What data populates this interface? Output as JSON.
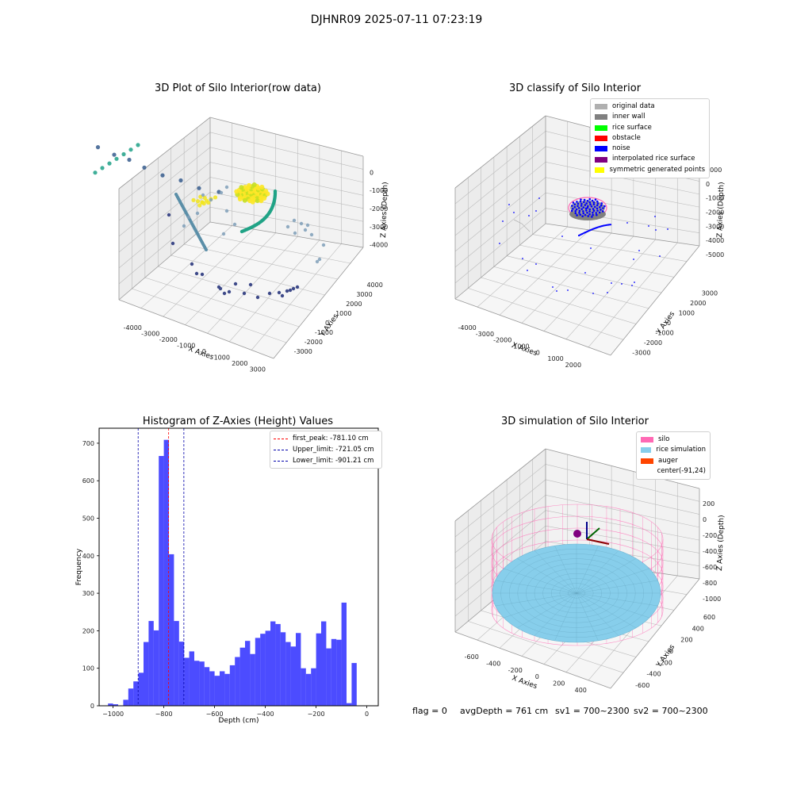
{
  "suptitle": "DJHNR09 2025-07-11 07:23:19",
  "footer": {
    "flag": "flag = 0",
    "avg_depth": "avgDepth = 761 cm",
    "sv1": "sv1 = 700~2300",
    "sv2": "sv2 = 700~2300"
  },
  "chart_data": [
    {
      "type": "scatter",
      "projection": "3d",
      "title": "3D Plot of Silo Interior(row data)",
      "xlabel": "X Axies",
      "ylabel": "Y Axies",
      "zlabel": "Z Axies (Depth)",
      "x_ticks": [
        "-4000",
        "-3000",
        "-2000",
        "-1000",
        "0",
        "1000",
        "2000",
        "3000"
      ],
      "y_ticks": [
        "-3000",
        "-2000",
        "-1000",
        "0",
        "1000",
        "2000",
        "3000",
        "4000"
      ],
      "z_ticks": [
        "0",
        "-1000",
        "-2000",
        "-3000",
        "-4000"
      ],
      "grid": true,
      "colormap": "viridis",
      "series": [
        {
          "label_color": "#f2e51d",
          "x": [
            -200,
            -100,
            0,
            100,
            200,
            300,
            -150,
            50,
            250,
            -50,
            150,
            0
          ],
          "y": [
            -200,
            -100,
            0,
            100,
            200,
            300,
            150,
            -250,
            -50,
            250,
            -150,
            0
          ],
          "z": [
            -1950,
            -1900,
            -1850,
            -1900,
            -1950,
            -2000,
            -1920,
            -1880,
            -1960,
            -1870,
            -1940,
            -1850
          ]
        },
        {
          "label_color": "#1fa187",
          "x": [
            -3400,
            -3200,
            -3000,
            -2800,
            -2600,
            -2400,
            -2200
          ],
          "y": [
            -800,
            -700,
            -600,
            -500,
            -400,
            -300,
            -200
          ],
          "z": [
            -2000,
            -2200,
            -2400,
            -2600,
            -2800,
            -3000,
            -3200
          ]
        },
        {
          "label_color": "#365c8d",
          "x": [
            -2500,
            -1800,
            -1200,
            -600,
            0,
            600,
            1200,
            1800
          ],
          "y": [
            -2200,
            -2400,
            -2500,
            -2600,
            -2500,
            -2400,
            -2300,
            -2100
          ],
          "z": [
            -4000,
            -4100,
            -4200,
            -4200,
            -4100,
            -4100,
            -4000,
            -4000
          ]
        }
      ]
    },
    {
      "type": "scatter",
      "projection": "3d",
      "title": "3D classify of Silo Interior",
      "xlabel": "X Axies",
      "ylabel": "Y Axies",
      "zlabel": "Z Axies (Depth)",
      "x_ticks": [
        "-4000",
        "-3000",
        "-2000",
        "-1000",
        "0",
        "1000",
        "2000"
      ],
      "y_ticks": [
        "-3000",
        "-2000",
        "-1000",
        "0",
        "1000",
        "2000",
        "3000"
      ],
      "z_ticks": [
        "1000",
        "0",
        "-1000",
        "-2000",
        "-3000",
        "-4000",
        "-5000"
      ],
      "grid": true,
      "legend_position": "top-right",
      "legend": [
        {
          "label": "original data",
          "color": "#b0b0b0"
        },
        {
          "label": "inner wall",
          "color": "#808080"
        },
        {
          "label": "rice surface",
          "color": "#00ff00"
        },
        {
          "label": "obstacle",
          "color": "#ff0000"
        },
        {
          "label": "noise",
          "color": "#0000ff"
        },
        {
          "label": "interpolated rice surface",
          "color": "#800080"
        },
        {
          "label": "symmetric generated points",
          "color": "#ffff00"
        }
      ]
    },
    {
      "type": "bar",
      "title": "Histogram of Z-Axies (Height) Values",
      "xlabel": "Depth (cm)",
      "ylabel": "Frequency",
      "xlim": [
        -1055,
        45
      ],
      "ylim": [
        0,
        740
      ],
      "x_ticks": [
        -1000,
        -800,
        -600,
        -400,
        -200,
        0
      ],
      "y_ticks": [
        0,
        100,
        200,
        300,
        400,
        500,
        600,
        700
      ],
      "bar_color": "#0000ff",
      "bin_width": 20,
      "bin_start": -1020,
      "values": [
        6,
        4,
        0,
        16,
        46,
        65,
        88,
        170,
        226,
        201,
        666,
        709,
        404,
        226,
        171,
        128,
        145,
        120,
        118,
        103,
        92,
        80,
        92,
        85,
        108,
        130,
        155,
        173,
        138,
        181,
        192,
        200,
        225,
        218,
        196,
        170,
        158,
        194,
        100,
        85,
        100,
        193,
        225,
        153,
        178,
        176,
        275,
        7,
        114
      ],
      "reference_lines": [
        {
          "label": "first_peak: -781.10 cm",
          "x": -781.1,
          "color": "#ff0000"
        },
        {
          "label": "Upper_limit: -721.05 cm",
          "x": -721.05,
          "color": "#0000aa"
        },
        {
          "label": "Lower_limit: -901.21 cm",
          "x": -901.21,
          "color": "#0000aa"
        }
      ],
      "legend_position": "top-right"
    },
    {
      "type": "scatter",
      "projection": "3d",
      "title": "3D simulation of Silo Interior",
      "xlabel": "X Axies",
      "ylabel": "Y Axies",
      "zlabel": "Z Axies (Depth)",
      "x_ticks": [
        "-600",
        "-400",
        "-200",
        "0",
        "200",
        "400"
      ],
      "y_ticks": [
        "-600",
        "-400",
        "-200",
        "0",
        "200",
        "400",
        "600"
      ],
      "z_ticks": [
        "200",
        "0",
        "-200",
        "-400",
        "-600",
        "-800",
        "-1000"
      ],
      "grid": true,
      "legend_position": "top-right",
      "legend": [
        {
          "label": "silo",
          "color": "#ff69b4"
        },
        {
          "label": "rice simulation",
          "color": "#87ceeb"
        },
        {
          "label": "auger",
          "color": "#ff4500"
        },
        {
          "label": "center(-91,24)",
          "color": ""
        }
      ]
    }
  ]
}
